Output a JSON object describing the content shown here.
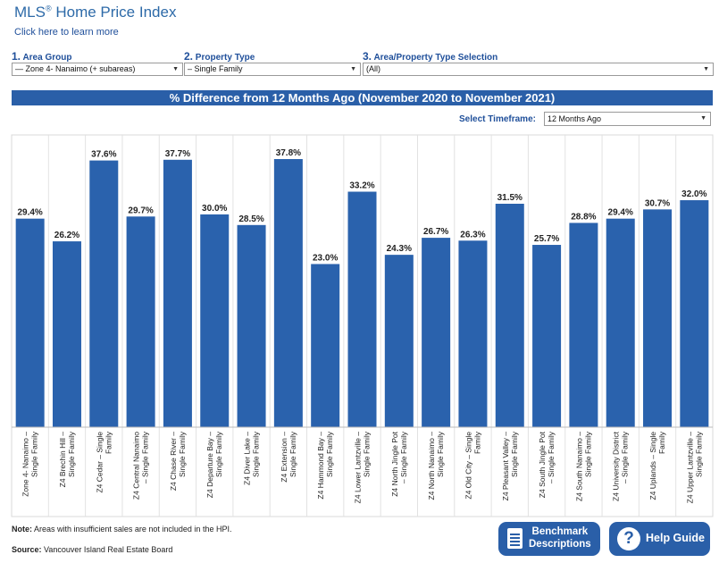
{
  "header": {
    "title": "MLS",
    "title_mark": "®",
    "title_rest": " Home Price Index",
    "learn_link": "Click here to learn more"
  },
  "selectors": {
    "area_group": {
      "num": "1.",
      "label": "Area Group",
      "value": "— Zone 4- Nanaimo (+ subareas)"
    },
    "property_type": {
      "num": "2.",
      "label": "Property Type",
      "value": "– Single Family"
    },
    "area_property": {
      "num": "3.",
      "label": "Area/Property Type Selection",
      "value": "(All)"
    }
  },
  "banner": "% Difference from 12 Months Ago (November 2020 to November 2021)",
  "timeframe": {
    "label": "Select Timeframe:",
    "value": "12 Months Ago"
  },
  "footer": {
    "note_bold": "Note:",
    "note_text": " Areas with insufficient sales are not included in the HPI.",
    "source_bold": "Source:",
    "source_text": " Vancouver Island Real Estate Board"
  },
  "buttons": {
    "benchmark_line1": "Benchmark",
    "benchmark_line2": "Descriptions",
    "help": "Help Guide"
  },
  "colors": {
    "bar": "#2a62ad",
    "banner": "#2a5fa8",
    "accent": "#1f4f9a"
  },
  "icons": {
    "benchmark": "document-icon",
    "help": "question-circle-icon",
    "dropdown": "chevron-down-icon"
  },
  "chart_data": {
    "type": "bar",
    "title": "% Difference from 12 Months Ago (November 2020 to November 2021)",
    "xlabel": "",
    "ylabel": "",
    "ylim": [
      0,
      40
    ],
    "grid": false,
    "categories": [
      [
        "Zone 4- Nanaimo –",
        "Single Family"
      ],
      [
        "Z4 Brechin Hill –",
        "Single Family"
      ],
      [
        "Z4 Cedar – Single",
        "Family"
      ],
      [
        "Z4 Central Nanaimo",
        "– Single Family"
      ],
      [
        "Z4 Chase River –",
        "Single Family"
      ],
      [
        "Z4 Departure Bay –",
        "Single Family"
      ],
      [
        "Z4 Diver Lake –",
        "Single Family"
      ],
      [
        "Z4 Extension –",
        "Single Family"
      ],
      [
        "Z4 Hammond Bay –",
        "Single Family"
      ],
      [
        "Z4 Lower Lantzville –",
        "Single Family"
      ],
      [
        "Z4 North Jingle Pot",
        "– Single Family"
      ],
      [
        "Z4 North Nanaimo –",
        "Single Family"
      ],
      [
        "Z4 Old City – Single",
        "Family"
      ],
      [
        "Z4 Pleasant Valley –",
        "Single Family"
      ],
      [
        "Z4 South Jingle Pot",
        "– Single Family"
      ],
      [
        "Z4 South Nanaimo –",
        "Single Family"
      ],
      [
        "Z4 University District",
        "– Single Family"
      ],
      [
        "Z4 Uplands – Single",
        "Family"
      ],
      [
        "Z4 Upper Lantzville –",
        "Single Family"
      ]
    ],
    "values": [
      29.4,
      26.2,
      37.6,
      29.7,
      37.7,
      30.0,
      28.5,
      37.8,
      23.0,
      33.2,
      24.3,
      26.7,
      26.3,
      31.5,
      25.7,
      28.8,
      29.4,
      30.7,
      32.0
    ],
    "data_labels": [
      "29.4%",
      "26.2%",
      "37.6%",
      "29.7%",
      "37.7%",
      "30.0%",
      "28.5%",
      "37.8%",
      "23.0%",
      "33.2%",
      "24.3%",
      "26.7%",
      "26.3%",
      "31.5%",
      "25.7%",
      "28.8%",
      "29.4%",
      "30.7%",
      "32.0%"
    ]
  }
}
